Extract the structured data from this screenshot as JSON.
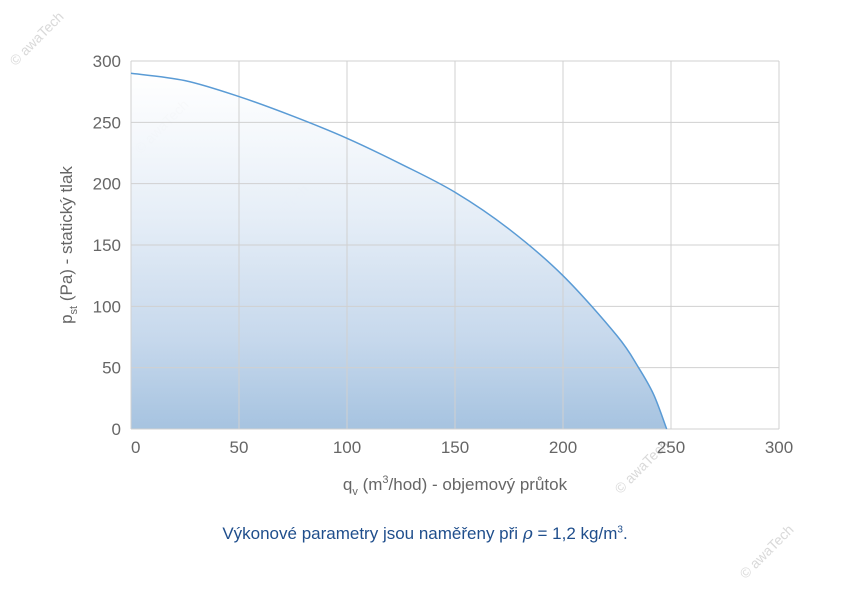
{
  "chart_data": {
    "type": "area",
    "title": "",
    "xlabel": {
      "main": "q",
      "sub": "v",
      "rest_before_sup": " (m",
      "sup": "3",
      "rest_after_sup": "/hod) - objemový průtok"
    },
    "ylabel": {
      "main": "p",
      "sub": "st",
      "rest": " (Pa) - statický tlak"
    },
    "xlim": [
      0,
      300
    ],
    "ylim": [
      0,
      300
    ],
    "x_ticks": [
      0,
      50,
      100,
      150,
      200,
      250,
      300
    ],
    "y_ticks": [
      0,
      50,
      100,
      150,
      200,
      250,
      300
    ],
    "grid": true,
    "legend": "none",
    "series": [
      {
        "x": [
          0,
          25,
          50,
          75,
          100,
          125,
          150,
          175,
          200,
          225,
          235,
          242,
          248
        ],
        "y": [
          290,
          284,
          271,
          255,
          237,
          216,
          193,
          163,
          125,
          76,
          50,
          28,
          0
        ],
        "color": "#5a9bd5"
      }
    ],
    "colors": {
      "line": "#5a9bd5",
      "fill_bottom": "#a6c3e0",
      "fill_top": "#ffffff",
      "grid": "#d0d0d0"
    }
  },
  "caption": {
    "before": "Výkonové parametry jsou naměřeny při ",
    "rho": "ρ",
    "middle": " = 1,2 kg/m",
    "sup": "3",
    "end": "."
  },
  "watermark": "© awaTech"
}
